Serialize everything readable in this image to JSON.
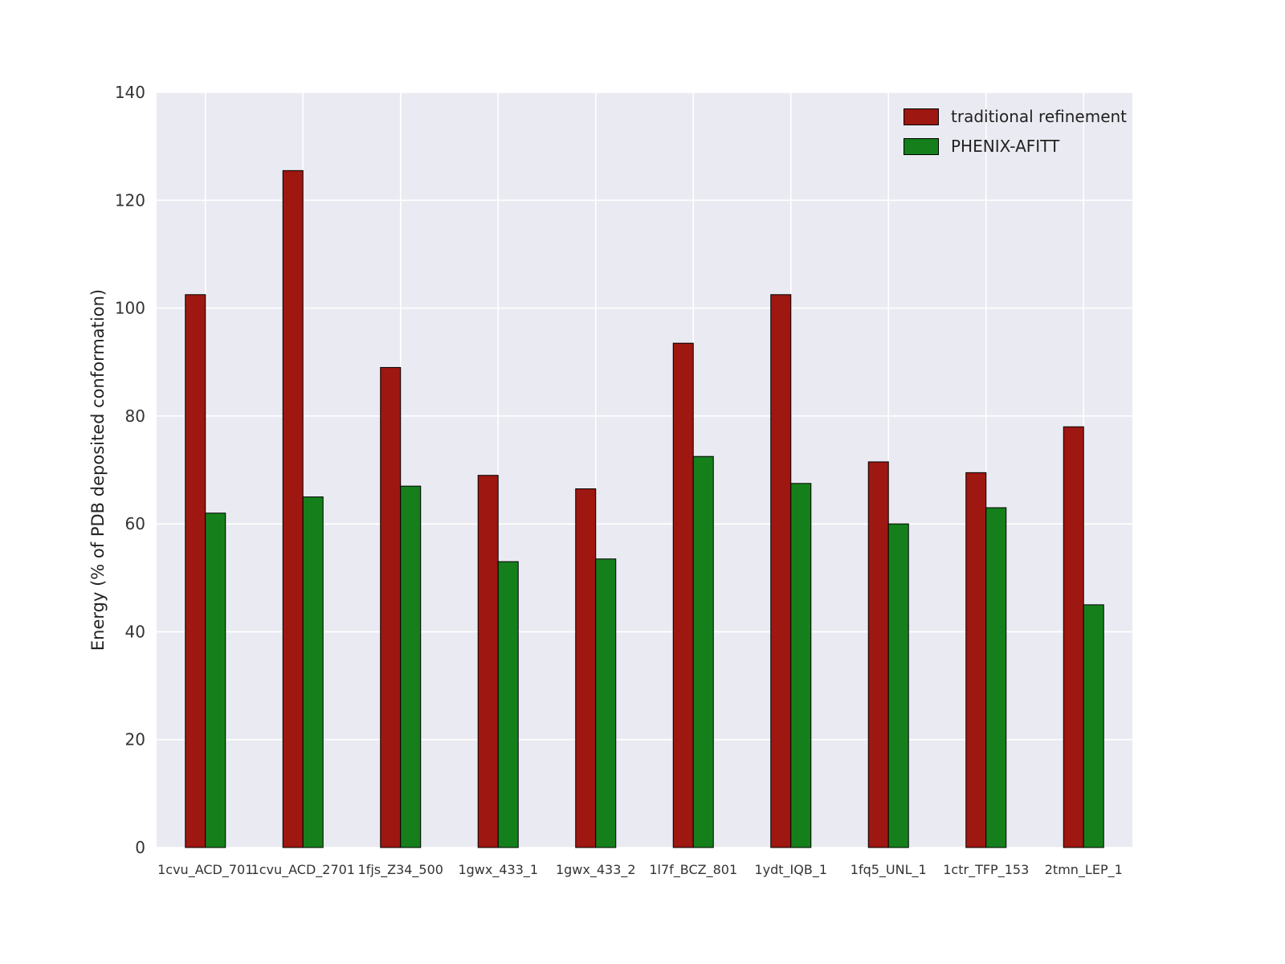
{
  "chart_data": {
    "type": "bar",
    "title": "",
    "xlabel": "",
    "ylabel": "Energy (% of PDB deposited conformation)",
    "ylim": [
      0,
      140
    ],
    "yticks": [
      0,
      20,
      40,
      60,
      80,
      100,
      120,
      140
    ],
    "grid": true,
    "legend_position": "upper right",
    "background_color": "#eaeaf2",
    "gridline_color": "#ffffff",
    "categories": [
      "1cvu_ACD_701",
      "1cvu_ACD_2701",
      "1fjs_Z34_500",
      "1gwx_433_1",
      "1gwx_433_2",
      "1l7f_BCZ_801",
      "1ydt_IQB_1",
      "1fq5_UNL_1",
      "1ctr_TFP_153",
      "2tmn_LEP_1"
    ],
    "series": [
      {
        "name": "traditional refinement",
        "color": "#9e1710",
        "values": [
          102.5,
          125.5,
          89,
          69,
          66.5,
          93.5,
          102.5,
          71.5,
          69.5,
          78
        ]
      },
      {
        "name": "PHENIX-AFITT",
        "color": "#15801b",
        "values": [
          62,
          65,
          67,
          53,
          53.5,
          72.5,
          67.5,
          60,
          63,
          45
        ]
      }
    ]
  }
}
